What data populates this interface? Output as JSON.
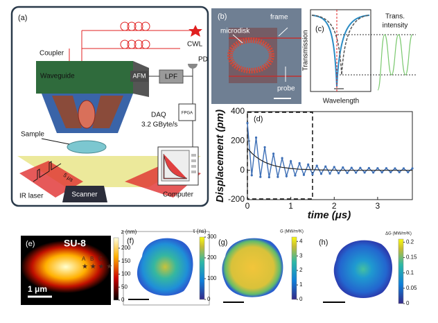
{
  "panels": {
    "a": {
      "label": "(a)",
      "coupler": "Coupler",
      "cwl": "CWL",
      "waveguide": "Waveguide",
      "afm": "AFM",
      "lpf": "LPF",
      "pd": "PD",
      "daq": "DAQ",
      "rate": "3.2 GByte/s",
      "fpga": "FPGA",
      "sample": "Sample",
      "pulse": "5 μs",
      "ir_laser": "IR laser",
      "scanner": "Scanner",
      "computer": "Computer"
    },
    "b": {
      "label": "(b)",
      "frame": "frame",
      "microdisk": "microdisk",
      "probe": "probe"
    },
    "c": {
      "label": "(c)",
      "trans_intensity": [
        "Trans.",
        "intensity"
      ],
      "ylabel": "Transmission",
      "xlabel": "Wavelength"
    },
    "e": {
      "label": "(e)",
      "material": "SU-8",
      "scale": "1 μm",
      "points": [
        "A",
        "B",
        "C"
      ],
      "colorbar": {
        "title": "z (nm)",
        "lim": [
          0,
          240
        ],
        "ticks": [
          0,
          50,
          100,
          150,
          200
        ]
      }
    },
    "f": {
      "label": "(f)",
      "colorbar": {
        "title": "τ (ns)",
        "lim": [
          0,
          300
        ],
        "ticks": [
          0,
          100,
          200,
          300
        ]
      }
    },
    "g": {
      "label": "(g)",
      "colorbar": {
        "title": "G (MW/m²K)",
        "lim": [
          0,
          4.3
        ],
        "ticks": [
          0,
          1,
          2,
          3,
          4
        ]
      }
    },
    "h": {
      "label": "(h)",
      "colorbar": {
        "title": "ΔG (MW/m²K)",
        "lim": [
          0,
          0.21
        ],
        "ticks": [
          0,
          0.05,
          0.1,
          0.15,
          0.2
        ]
      }
    }
  },
  "chart_data": {
    "type": "line",
    "label": "(d)",
    "x_label": "time (μs)",
    "y_label": "Displacement (pm)",
    "x": [
      0,
      0.1,
      0.2,
      0.3,
      0.4,
      0.5,
      0.6,
      0.7,
      0.8,
      0.9,
      1.0,
      1.1,
      1.2,
      1.3,
      1.4,
      1.5,
      1.6,
      1.7,
      1.8,
      1.9,
      2.0,
      2.1,
      2.2,
      2.3,
      2.4,
      2.5,
      2.6,
      2.7,
      2.8,
      2.9,
      3.0,
      3.1,
      3.2,
      3.3,
      3.4,
      3.5,
      3.6,
      3.7,
      3.8
    ],
    "series": [
      {
        "color": "#3d6fb6",
        "values": [
          322,
          -34,
          223,
          -45,
          157,
          -47,
          113,
          -45,
          83,
          -40,
          62,
          -35,
          48,
          -31,
          39,
          -27,
          31,
          -24,
          26,
          -22,
          22,
          -20,
          19,
          -18,
          17,
          -16,
          16,
          -15,
          15,
          -15,
          14,
          -14,
          14,
          -13,
          13,
          -13,
          13,
          -13,
          13
        ]
      },
      {
        "color": "#222222",
        "values": [
          150,
          117,
          91,
          71,
          55,
          43,
          33,
          26,
          20,
          16,
          12,
          10,
          7,
          6,
          5,
          4,
          3,
          2,
          2,
          1,
          1,
          0,
          0,
          0,
          0,
          0,
          0,
          0,
          0,
          0,
          0,
          0,
          0,
          0,
          0,
          0,
          0,
          0,
          0
        ]
      }
    ],
    "xlim": [
      0,
      3.8
    ],
    "xticks": [
      0,
      1,
      2,
      3
    ],
    "ylim": [
      -200,
      400
    ],
    "yticks": [
      -200,
      0,
      200,
      400
    ],
    "highlight_x": [
      0,
      1.5
    ]
  }
}
